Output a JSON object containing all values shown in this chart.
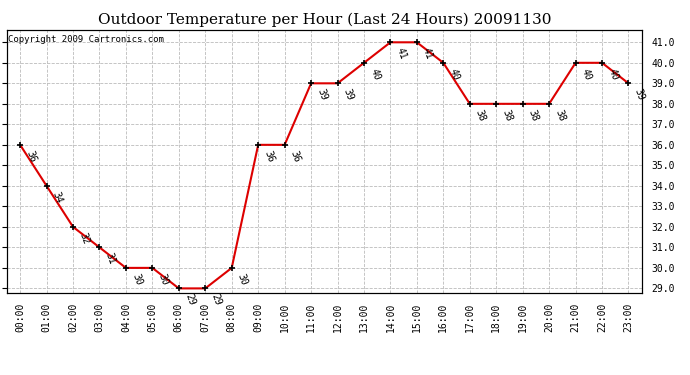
{
  "title": "Outdoor Temperature per Hour (Last 24 Hours) 20091130",
  "copyright": "Copyright 2009 Cartronics.com",
  "hours": [
    "00:00",
    "01:00",
    "02:00",
    "03:00",
    "04:00",
    "05:00",
    "06:00",
    "07:00",
    "08:00",
    "09:00",
    "10:00",
    "11:00",
    "12:00",
    "13:00",
    "14:00",
    "15:00",
    "16:00",
    "17:00",
    "18:00",
    "19:00",
    "20:00",
    "21:00",
    "22:00",
    "23:00"
  ],
  "temps": [
    36,
    34,
    32,
    31,
    30,
    30,
    29,
    29,
    30,
    36,
    36,
    39,
    39,
    40,
    41,
    41,
    40,
    38,
    38,
    38,
    38,
    40,
    40,
    39
  ],
  "ylim_min": 28.8,
  "ylim_max": 41.6,
  "yticks": [
    29.0,
    30.0,
    31.0,
    32.0,
    33.0,
    34.0,
    35.0,
    36.0,
    37.0,
    38.0,
    39.0,
    40.0,
    41.0
  ],
  "line_color": "#dd0000",
  "marker_color": "#000000",
  "bg_color": "#ffffff",
  "grid_color": "#bbbbbb",
  "title_fontsize": 11,
  "label_fontsize": 7,
  "tick_fontsize": 7,
  "copyright_fontsize": 6.5
}
